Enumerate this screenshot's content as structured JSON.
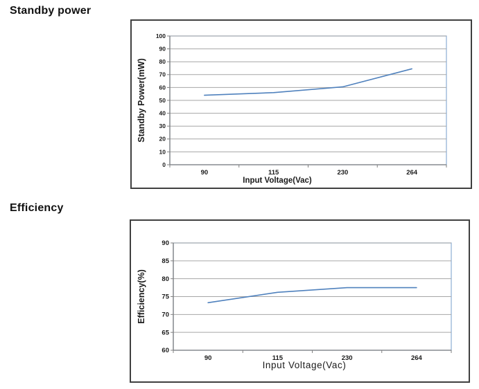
{
  "page": {
    "background": "#ffffff"
  },
  "sections": [
    {
      "heading": "Standby power"
    },
    {
      "heading": "Efficiency"
    }
  ],
  "colors": {
    "heading_text": "#111111",
    "chart_box_border": "#3f3f3f",
    "plot_border": "#95b3d7",
    "gridline": "#a6a6a6",
    "axis": "#808080",
    "series_line": "#4f81bd",
    "tick_text": "#1a1a1a"
  },
  "chart_data": [
    {
      "type": "line",
      "section": "Standby power",
      "categories": [
        "90",
        "115",
        "230",
        "264"
      ],
      "values": [
        54,
        56,
        60.5,
        74.5
      ],
      "xlabel": "Input Voltage(Vac)",
      "ylabel": "Standby Power(mW)",
      "ylim": [
        0,
        100
      ],
      "yticks": [
        0,
        10,
        20,
        30,
        40,
        50,
        60,
        70,
        80,
        90,
        100
      ],
      "grid": true,
      "legend": "none"
    },
    {
      "type": "line",
      "section": "Efficiency",
      "categories": [
        "90",
        "115",
        "230",
        "264"
      ],
      "values": [
        73.3,
        76.2,
        77.5,
        77.5
      ],
      "xlabel": "Input Voltage(Vac)",
      "ylabel": "Efficiency(%)",
      "ylim": [
        60,
        90
      ],
      "yticks": [
        60,
        65,
        70,
        75,
        80,
        85,
        90
      ],
      "grid": true,
      "legend": "none"
    }
  ]
}
